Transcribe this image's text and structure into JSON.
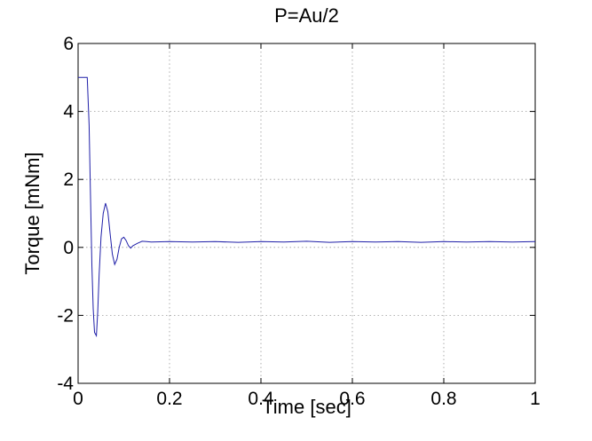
{
  "chart_data": {
    "type": "line",
    "title": "P=Au/2",
    "xlabel": "Time [sec]",
    "ylabel": "Torque [mNm]",
    "xlim": [
      0,
      1
    ],
    "ylim": [
      -4,
      6
    ],
    "xticks": [
      0,
      0.2,
      0.4,
      0.6,
      0.8,
      1
    ],
    "xtick_labels": [
      "0",
      "0.2",
      "0.4",
      "0.6",
      "0.8",
      "1"
    ],
    "yticks": [
      -4,
      -2,
      0,
      2,
      4,
      6
    ],
    "ytick_labels": [
      "-4",
      "-2",
      "0",
      "2",
      "4",
      "6"
    ],
    "grid": true,
    "series_color": "#1f1fa8",
    "series": [
      {
        "x": [
          0,
          0.01,
          0.02,
          0.024,
          0.027,
          0.03,
          0.033,
          0.036,
          0.04,
          0.043,
          0.046,
          0.05,
          0.055,
          0.06,
          0.065,
          0.07,
          0.075,
          0.08,
          0.085,
          0.09,
          0.095,
          0.1,
          0.105,
          0.11,
          0.115,
          0.12,
          0.13,
          0.14,
          0.15,
          0.16,
          0.2,
          0.25,
          0.3,
          0.35,
          0.4,
          0.45,
          0.5,
          0.55,
          0.6,
          0.65,
          0.7,
          0.75,
          0.8,
          0.85,
          0.9,
          0.95,
          1.0
        ],
        "y": [
          5.0,
          5.0,
          5.0,
          3.6,
          1.6,
          -0.5,
          -1.8,
          -2.5,
          -2.6,
          -1.9,
          -0.8,
          0.3,
          1.0,
          1.3,
          1.05,
          0.4,
          -0.2,
          -0.5,
          -0.35,
          0.0,
          0.25,
          0.3,
          0.2,
          0.05,
          -0.02,
          0.05,
          0.12,
          0.18,
          0.17,
          0.16,
          0.17,
          0.16,
          0.17,
          0.15,
          0.17,
          0.16,
          0.18,
          0.15,
          0.17,
          0.16,
          0.17,
          0.15,
          0.17,
          0.16,
          0.17,
          0.16,
          0.17
        ]
      }
    ]
  }
}
